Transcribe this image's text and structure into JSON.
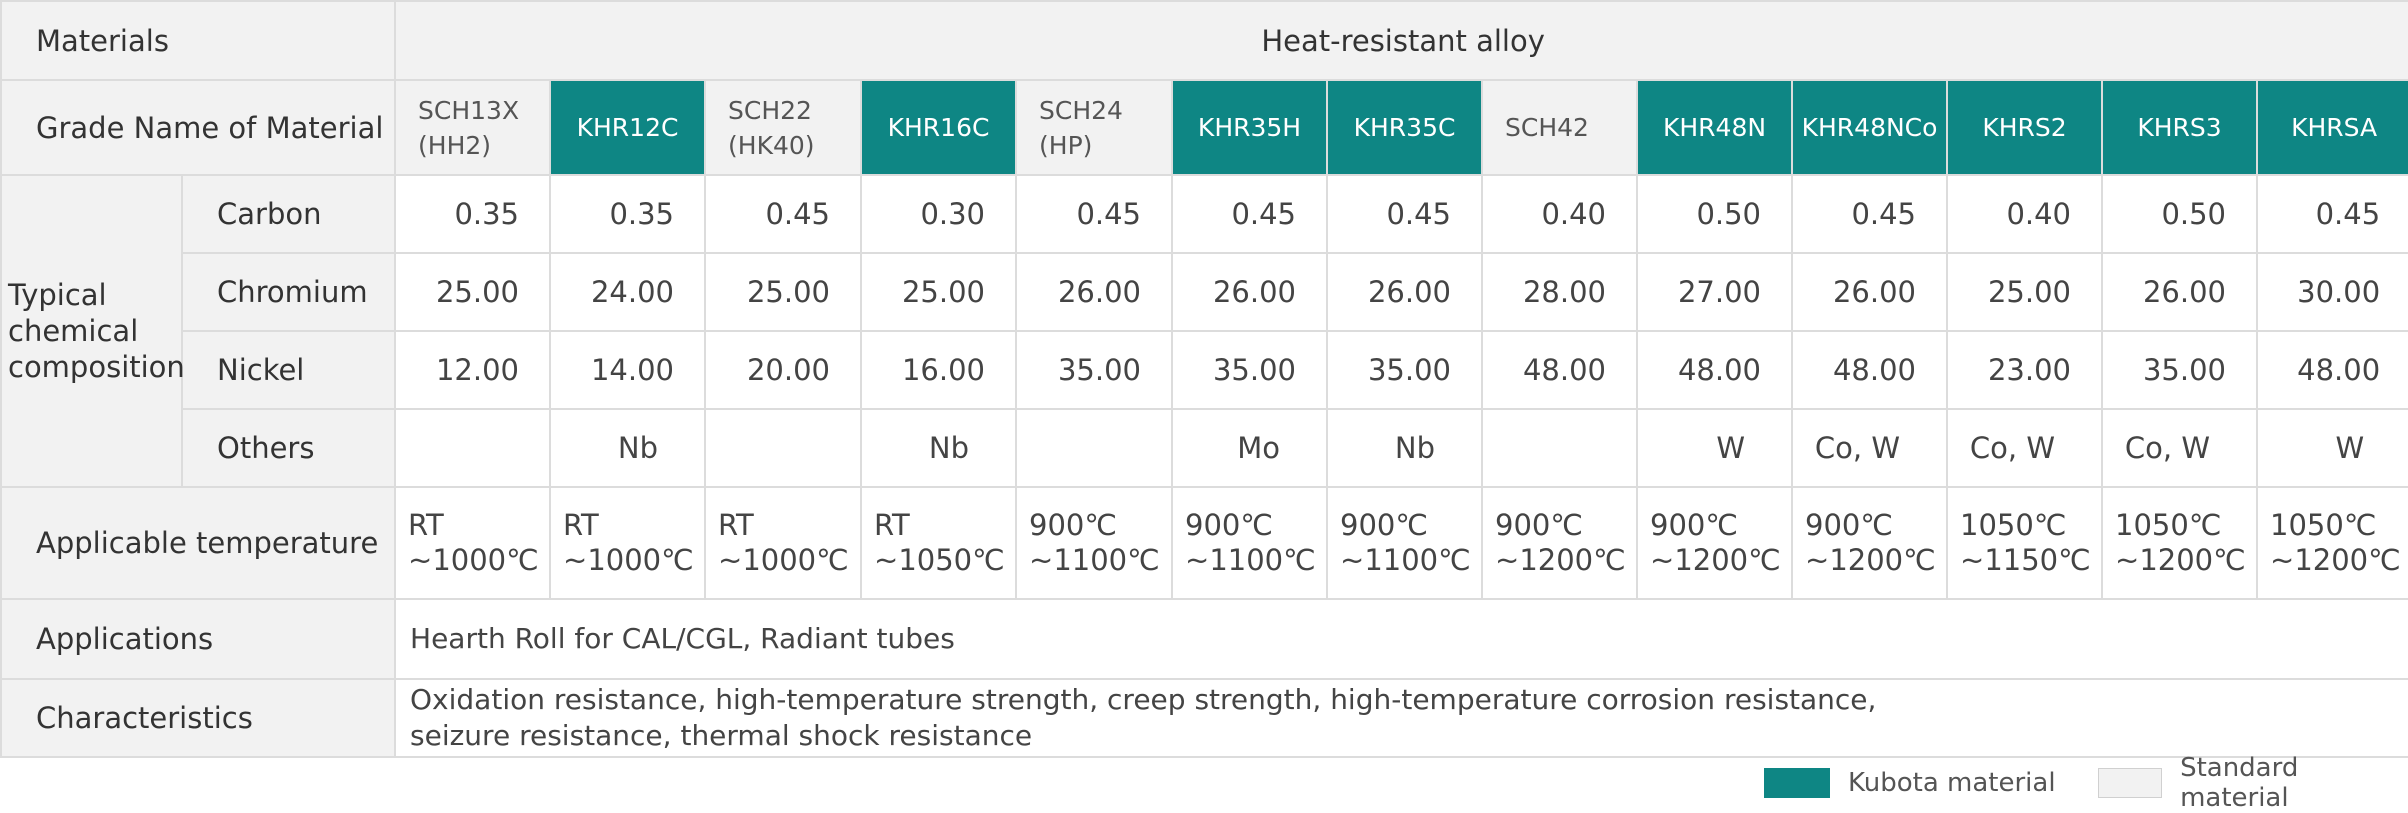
{
  "header": {
    "materials_label": "Materials",
    "alloy_label": "Heat-resistant alloy"
  },
  "grade": {
    "label": "Grade Name of Material",
    "items": [
      {
        "line1": "SCH13X",
        "line2": "(HH2)",
        "kind": "standard"
      },
      {
        "line1": "KHR12C",
        "line2": "",
        "kind": "kubota"
      },
      {
        "line1": "SCH22",
        "line2": "(HK40)",
        "kind": "standard"
      },
      {
        "line1": "KHR16C",
        "line2": "",
        "kind": "kubota"
      },
      {
        "line1": "SCH24",
        "line2": "(HP)",
        "kind": "standard"
      },
      {
        "line1": "KHR35H",
        "line2": "",
        "kind": "kubota"
      },
      {
        "line1": "KHR35C",
        "line2": "",
        "kind": "kubota"
      },
      {
        "line1": "SCH42",
        "line2": "",
        "kind": "standard"
      },
      {
        "line1": "KHR48N",
        "line2": "",
        "kind": "kubota"
      },
      {
        "line1": "KHR48NCo",
        "line2": "",
        "kind": "kubota"
      },
      {
        "line1": "KHRS2",
        "line2": "",
        "kind": "kubota"
      },
      {
        "line1": "KHRS3",
        "line2": "",
        "kind": "kubota"
      },
      {
        "line1": "KHRSA",
        "line2": "",
        "kind": "kubota"
      }
    ]
  },
  "composition": {
    "typical_line1": "Typical",
    "typical_line2": "chemical",
    "typical_line3": "composition",
    "rows": [
      {
        "label": "Carbon",
        "values": [
          "0.35",
          "0.35",
          "0.45",
          "0.30",
          "0.45",
          "0.45",
          "0.45",
          "0.40",
          "0.50",
          "0.45",
          "0.40",
          "0.50",
          "0.45"
        ]
      },
      {
        "label": "Chromium",
        "values": [
          "25.00",
          "24.00",
          "25.00",
          "25.00",
          "26.00",
          "26.00",
          "26.00",
          "28.00",
          "27.00",
          "26.00",
          "25.00",
          "26.00",
          "30.00"
        ]
      },
      {
        "label": "Nickel",
        "values": [
          "12.00",
          "14.00",
          "20.00",
          "16.00",
          "35.00",
          "35.00",
          "35.00",
          "48.00",
          "48.00",
          "48.00",
          "23.00",
          "35.00",
          "48.00"
        ]
      },
      {
        "label": "Others",
        "values": [
          "",
          "Nb",
          "",
          "Nb",
          "",
          "Mo",
          "Nb",
          "",
          "W",
          "Co, W",
          "Co, W",
          "Co, W",
          "W"
        ]
      }
    ]
  },
  "temperature": {
    "label": "Applicable temperature",
    "items": [
      {
        "line1": "RT",
        "line2": "~1000℃"
      },
      {
        "line1": "RT",
        "line2": "~1000℃"
      },
      {
        "line1": "RT",
        "line2": "~1000℃"
      },
      {
        "line1": "RT",
        "line2": "~1050℃"
      },
      {
        "line1": "900℃",
        "line2": "~1100℃"
      },
      {
        "line1": "900℃",
        "line2": "~1100℃"
      },
      {
        "line1": "900℃",
        "line2": "~1100℃"
      },
      {
        "line1": "900℃",
        "line2": "~1200℃"
      },
      {
        "line1": "900℃",
        "line2": "~1200℃"
      },
      {
        "line1": "900℃",
        "line2": "~1200℃"
      },
      {
        "line1": "1050℃",
        "line2": "~1150℃"
      },
      {
        "line1": "1050℃",
        "line2": "~1200℃"
      },
      {
        "line1": "1050℃",
        "line2": "~1200℃"
      }
    ]
  },
  "applications": {
    "label": "Applications",
    "text": "Hearth Roll for CAL/CGL, Radiant tubes"
  },
  "characteristics": {
    "label": "Characteristics",
    "line1": "Oxidation resistance, high-temperature strength, creep strength, high-temperature corrosion resistance,",
    "line2": "seizure resistance, thermal shock resistance"
  },
  "legend": {
    "kubota_label": "Kubota material",
    "standard_label": "Standard  material"
  },
  "colors": {
    "kubota": "#0e8684",
    "standard": "#f2f2f2",
    "border": "#dcdcdc"
  }
}
